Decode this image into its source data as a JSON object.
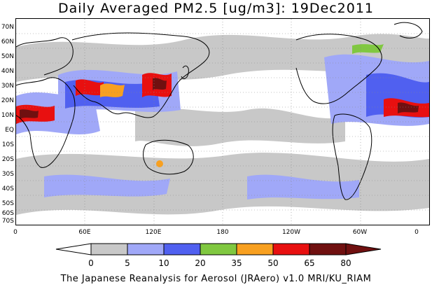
{
  "title": "Daily Averaged PM2.5 [ug/m3]: 19Dec2011",
  "footer": "The Japanese Reanalysis for Aerosol (JRAero) v1.0 MRI/KU_RIAM",
  "lat_labels": [
    "70N",
    "60N",
    "50N",
    "40N",
    "30N",
    "20N",
    "10N",
    "EQ",
    "10S",
    "20S",
    "30S",
    "40S",
    "50S",
    "60S",
    "70S"
  ],
  "lon_labels": [
    "0",
    "60E",
    "120E",
    "180",
    "120W",
    "60W",
    "0"
  ],
  "colorbar": {
    "levels": [
      "0",
      "5",
      "10",
      "20",
      "35",
      "50",
      "65",
      "80"
    ],
    "colors": [
      "#ffffff",
      "#c8c8c8",
      "#a0a8f8",
      "#5060f0",
      "#80c840",
      "#f8a020",
      "#e81010",
      "#701010"
    ]
  },
  "colors": {
    "land_outline": "#000000",
    "gridline": "#888888"
  }
}
